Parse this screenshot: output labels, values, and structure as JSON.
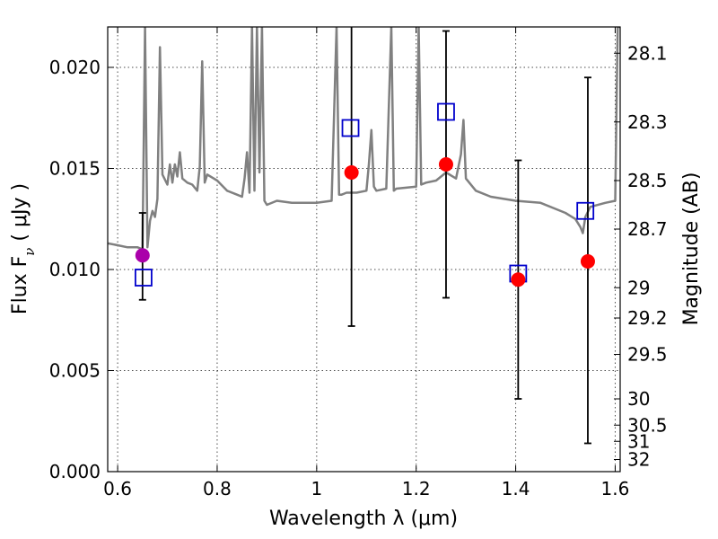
{
  "chart_data": {
    "type": "scatter",
    "xlabel": "Wavelength  λ (μm)",
    "ylabel_left": "Flux  F",
    "ylabel_left_sub": "ν",
    "ylabel_left_unit": " ( μJy )",
    "ylabel_right": "Magnitude (AB)",
    "xlim": [
      0.58,
      1.61
    ],
    "ylim": [
      0.0,
      0.022
    ],
    "grid": true,
    "x_ticks": [
      0.6,
      0.8,
      1.0,
      1.2,
      1.4,
      1.6
    ],
    "x_tick_labels": [
      "0.6",
      "0.8",
      "1",
      "1.2",
      "1.4",
      "1.6"
    ],
    "y_ticks": [
      0.0,
      0.005,
      0.01,
      0.015,
      0.02
    ],
    "y_tick_labels": [
      "0.000",
      "0.005",
      "0.010",
      "0.015",
      "0.020"
    ],
    "right_ticks": [
      {
        "label": "28.1",
        "flux": 0.0207
      },
      {
        "label": "28.3",
        "flux": 0.0173
      },
      {
        "label": "28.5",
        "flux": 0.0144
      },
      {
        "label": "28.7",
        "flux": 0.012
      },
      {
        "label": "29",
        "flux": 0.0091
      },
      {
        "label": "29.2",
        "flux": 0.0076
      },
      {
        "label": "29.5",
        "flux": 0.0058
      },
      {
        "label": "30",
        "flux": 0.0036
      },
      {
        "label": "30.5",
        "flux": 0.0023
      },
      {
        "label": "31",
        "flux": 0.0015
      },
      {
        "label": "32",
        "flux": 0.0006
      }
    ],
    "spectrum": {
      "color": "#808080",
      "x": [
        0.58,
        0.6,
        0.62,
        0.64,
        0.65,
        0.655,
        0.66,
        0.665,
        0.67,
        0.675,
        0.68,
        0.685,
        0.69,
        0.7,
        0.705,
        0.71,
        0.715,
        0.72,
        0.725,
        0.73,
        0.74,
        0.75,
        0.76,
        0.765,
        0.77,
        0.775,
        0.78,
        0.8,
        0.82,
        0.84,
        0.85,
        0.855,
        0.86,
        0.865,
        0.87,
        0.875,
        0.88,
        0.885,
        0.89,
        0.895,
        0.9,
        0.92,
        0.95,
        1.0,
        1.03,
        1.04,
        1.045,
        1.05,
        1.06,
        1.08,
        1.1,
        1.105,
        1.11,
        1.115,
        1.12,
        1.14,
        1.15,
        1.155,
        1.16,
        1.2,
        1.205,
        1.21,
        1.22,
        1.24,
        1.26,
        1.28,
        1.29,
        1.295,
        1.3,
        1.32,
        1.35,
        1.4,
        1.45,
        1.48,
        1.5,
        1.52,
        1.53,
        1.535,
        1.54,
        1.55,
        1.58,
        1.6,
        1.605,
        1.61
      ],
      "y": [
        0.0113,
        0.0112,
        0.0111,
        0.0111,
        0.011,
        0.022,
        0.0111,
        0.0124,
        0.0129,
        0.0126,
        0.0135,
        0.021,
        0.0147,
        0.0142,
        0.0152,
        0.0143,
        0.0152,
        0.0146,
        0.0158,
        0.0145,
        0.0143,
        0.0142,
        0.0139,
        0.0151,
        0.0203,
        0.0143,
        0.0147,
        0.0144,
        0.0139,
        0.0137,
        0.0136,
        0.0145,
        0.0158,
        0.0138,
        0.022,
        0.0139,
        0.022,
        0.0148,
        0.022,
        0.0134,
        0.0132,
        0.0134,
        0.0133,
        0.0133,
        0.0134,
        0.022,
        0.0137,
        0.0137,
        0.0138,
        0.0138,
        0.0139,
        0.0152,
        0.0169,
        0.0141,
        0.0139,
        0.014,
        0.022,
        0.0139,
        0.014,
        0.0141,
        0.022,
        0.0142,
        0.0143,
        0.0144,
        0.0148,
        0.0145,
        0.0157,
        0.0174,
        0.0145,
        0.0139,
        0.0136,
        0.0134,
        0.0133,
        0.013,
        0.0128,
        0.0125,
        0.0121,
        0.0118,
        0.0126,
        0.0131,
        0.0133,
        0.0134,
        0.022,
        0.022
      ]
    },
    "series": [
      {
        "marker": "open-square",
        "color": "#0000cc",
        "points": [
          {
            "x": 0.652,
            "y": 0.0096
          },
          {
            "x": 1.068,
            "y": 0.017
          },
          {
            "x": 1.26,
            "y": 0.0178
          },
          {
            "x": 1.405,
            "y": 0.0098
          },
          {
            "x": 1.54,
            "y": 0.0129
          }
        ]
      },
      {
        "marker": "filled-circle",
        "points": [
          {
            "x": 0.65,
            "y": 0.0107,
            "color": "#aa00aa",
            "yerr": [
              0.0085,
              0.0128
            ]
          },
          {
            "x": 1.07,
            "y": 0.0148,
            "color": "#ff0000",
            "yerr": [
              0.0072,
              0.0225
            ]
          },
          {
            "x": 1.26,
            "y": 0.0152,
            "color": "#ff0000",
            "yerr": [
              0.0086,
              0.0218
            ]
          },
          {
            "x": 1.405,
            "y": 0.0095,
            "color": "#ff0000",
            "yerr": [
              0.0036,
              0.0154
            ]
          },
          {
            "x": 1.545,
            "y": 0.0104,
            "color": "#ff0000",
            "yerr": [
              0.0014,
              0.0195
            ]
          }
        ]
      }
    ]
  }
}
